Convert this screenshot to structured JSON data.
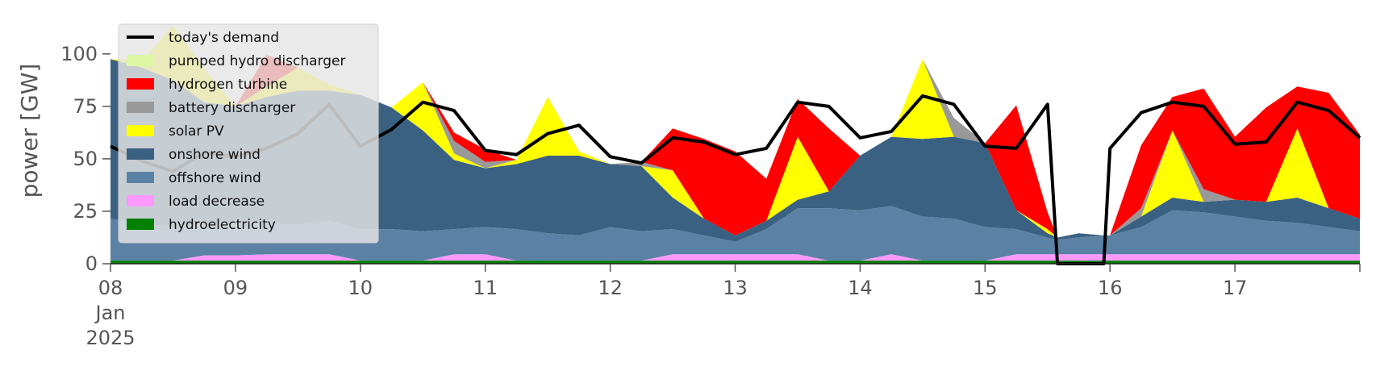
{
  "chart_data": {
    "type": "area",
    "title": "",
    "xlabel": "",
    "ylabel": "power [GW]",
    "ylim": [
      0,
      118
    ],
    "y_ticks": [
      0,
      25,
      50,
      75,
      100
    ],
    "x_ticks": [
      {
        "day": 8,
        "label": "08",
        "sub1": "Jan",
        "sub2": "2025"
      },
      {
        "day": 9,
        "label": "09"
      },
      {
        "day": 10,
        "label": "10"
      },
      {
        "day": 11,
        "label": "11"
      },
      {
        "day": 12,
        "label": "12"
      },
      {
        "day": 13,
        "label": "13"
      },
      {
        "day": 14,
        "label": "14"
      },
      {
        "day": 15,
        "label": "15"
      },
      {
        "day": 16,
        "label": "16"
      },
      {
        "day": 17,
        "label": "17"
      }
    ],
    "xlim_days": [
      8,
      18
    ],
    "grid": false,
    "legend_position": "top-left",
    "legend_order": [
      "todays_demand",
      "pumped_hydro",
      "hydrogen_turbine",
      "battery",
      "solar",
      "onshore",
      "offshore",
      "load_decrease",
      "hydro"
    ],
    "x_days": [
      8.0,
      8.25,
      8.5,
      8.75,
      9.0,
      9.25,
      9.5,
      9.75,
      10.0,
      10.25,
      10.5,
      10.75,
      11.0,
      11.25,
      11.5,
      11.75,
      12.0,
      12.25,
      12.5,
      12.75,
      13.0,
      13.25,
      13.5,
      13.75,
      14.0,
      14.25,
      14.5,
      14.75,
      15.0,
      15.25,
      15.5,
      15.58,
      15.75,
      15.95,
      16.0,
      16.25,
      16.5,
      16.75,
      17.0,
      17.25,
      17.5,
      17.75,
      18.0
    ],
    "series": [
      {
        "key": "hydro",
        "name": "hydroelectricity",
        "color": "#008000",
        "values": [
          1.5,
          1.5,
          1.5,
          1.5,
          1.5,
          1.5,
          1.5,
          1.5,
          1.5,
          1.5,
          1.5,
          1.5,
          1.5,
          1.5,
          1.5,
          1.5,
          1.5,
          1.5,
          1.5,
          1.5,
          1.5,
          1.5,
          1.5,
          1.5,
          1.5,
          1.5,
          1.5,
          1.5,
          1.5,
          1.5,
          1.5,
          1.5,
          1.5,
          1.5,
          1.5,
          1.5,
          1.5,
          1.5,
          1.5,
          1.5,
          1.5,
          1.5,
          1.5
        ]
      },
      {
        "key": "load_decrease",
        "name": "load decrease",
        "color": "#ff99ff",
        "values": [
          0,
          0,
          0,
          2.5,
          2.5,
          3,
          3,
          3,
          0,
          0,
          0,
          3,
          3,
          0,
          0,
          0,
          0,
          0,
          3,
          3,
          3,
          3,
          3,
          0,
          0,
          3,
          0,
          0,
          0,
          3,
          3,
          3,
          3,
          3,
          3,
          3,
          3,
          3,
          3,
          3,
          3,
          3,
          3
        ]
      },
      {
        "key": "offshore",
        "name": "offshore wind",
        "color": "#5b82a4",
        "values": [
          20,
          18,
          16,
          15,
          16,
          15,
          14,
          16,
          15,
          15,
          14,
          12,
          13,
          15,
          13,
          12,
          16,
          14,
          12,
          9,
          6,
          12,
          22,
          25,
          24,
          23,
          21,
          20,
          16,
          12,
          8,
          7,
          8,
          9,
          9,
          13,
          21,
          20,
          18,
          16,
          15,
          13,
          11
        ]
      },
      {
        "key": "onshore",
        "name": "onshore wind",
        "color": "#3b6182",
        "values": [
          76,
          74,
          70,
          58,
          55,
          60,
          64,
          62,
          64,
          58,
          48,
          33,
          28,
          31,
          37,
          38,
          30,
          31,
          15,
          8,
          3,
          4,
          4,
          8,
          26,
          33,
          37,
          39,
          40,
          9,
          2,
          1,
          2,
          0,
          0,
          5,
          6,
          5,
          8,
          9,
          12,
          9,
          6
        ]
      },
      {
        "key": "solar",
        "name": "solar PV",
        "color": "#ffff00",
        "values": [
          0,
          3,
          26,
          16,
          0,
          5,
          11,
          3,
          0,
          0,
          23,
          3,
          0,
          2,
          28,
          2,
          0,
          0,
          13,
          0,
          0,
          0,
          30,
          0,
          0,
          0,
          38,
          0,
          0,
          0,
          2,
          0,
          0,
          0,
          0,
          0,
          32,
          0,
          0,
          0,
          33,
          0,
          0
        ]
      },
      {
        "key": "battery",
        "name": "battery discharger",
        "color": "#999999",
        "values": [
          0,
          0,
          0,
          0,
          0,
          0,
          0,
          0,
          0,
          0,
          0,
          6,
          3,
          0,
          0,
          0,
          0,
          2,
          0,
          0,
          0,
          0,
          0,
          0,
          0,
          0,
          0,
          9,
          0,
          0,
          0,
          0,
          0,
          0,
          0,
          4,
          0,
          6,
          0,
          0,
          0,
          0,
          0
        ]
      },
      {
        "key": "hydrogen_turbine",
        "name": "hydrogen turbine",
        "color": "#ff0000",
        "values": [
          0,
          0,
          0,
          0,
          0,
          15,
          0,
          0,
          0,
          0,
          0,
          4,
          6,
          0,
          0,
          0,
          0,
          0,
          20,
          38,
          40,
          20,
          18,
          30,
          0,
          0,
          0,
          0,
          0,
          50,
          8,
          0,
          0,
          0,
          0,
          30,
          16,
          48,
          30,
          45,
          20,
          55,
          40
        ]
      },
      {
        "key": "pumped_hydro",
        "name": "pumped hydro discharger",
        "color": "#ddf7a3",
        "values": [
          0,
          0,
          0,
          0,
          0,
          0,
          0,
          0,
          0,
          0,
          0,
          0,
          0,
          0,
          0,
          0,
          0,
          0,
          0,
          0,
          0,
          0,
          0,
          0,
          0,
          0,
          0,
          0,
          0,
          0,
          0,
          0,
          0,
          0,
          0,
          0,
          0,
          0,
          0,
          0,
          0,
          0,
          0
        ]
      },
      {
        "key": "todays_demand",
        "name": "today's demand",
        "color": "#000000",
        "kind": "line",
        "values": [
          56,
          49,
          44,
          53,
          51,
          55,
          62,
          76,
          56,
          64,
          77,
          73,
          54,
          52,
          62,
          66,
          51,
          48,
          60,
          58,
          52,
          55,
          77,
          75,
          60,
          63,
          80,
          76,
          56,
          55,
          76,
          0,
          0,
          0,
          55,
          72,
          77,
          75,
          57,
          58,
          77,
          73,
          60
        ]
      }
    ]
  }
}
